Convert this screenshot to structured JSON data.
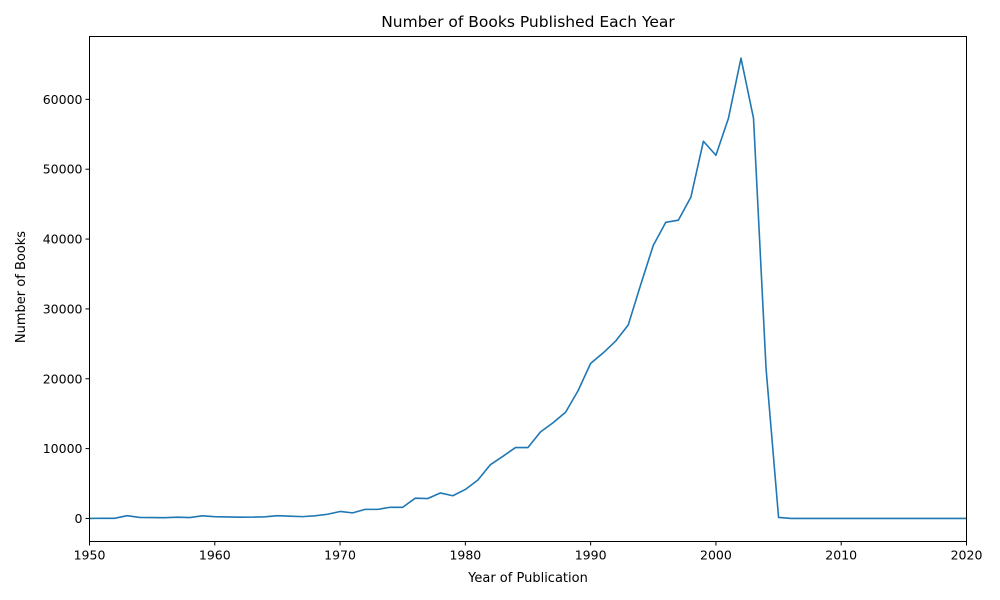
{
  "chart_data": {
    "type": "line",
    "title": "Number of Books Published Each Year",
    "xlabel": "Year of Publication",
    "ylabel": "Number of Books",
    "xlim": [
      1950,
      2020
    ],
    "ylim": [
      -3300,
      69000
    ],
    "xticks": [
      1950,
      1960,
      1970,
      1980,
      1990,
      2000,
      2010,
      2020
    ],
    "yticks": [
      0,
      10000,
      20000,
      30000,
      40000,
      50000,
      60000
    ],
    "grid": false,
    "color": "#1f77b4",
    "series": [
      {
        "x": [
          1950,
          1951,
          1952,
          1953,
          1954,
          1955,
          1956,
          1957,
          1958,
          1959,
          1960,
          1961,
          1962,
          1963,
          1964,
          1965,
          1966,
          1967,
          1968,
          1969,
          1970,
          1971,
          1972,
          1973,
          1974,
          1975,
          1976,
          1977,
          1978,
          1979,
          1980,
          1981,
          1982,
          1983,
          1984,
          1985,
          1986,
          1987,
          1988,
          1989,
          1990,
          1991,
          1992,
          1993,
          1994,
          1995,
          1996,
          1997,
          1998,
          1999,
          2000,
          2001,
          2002,
          2003,
          2004,
          2005,
          2006,
          2007,
          2008,
          2009,
          2010,
          2011,
          2012,
          2013,
          2014,
          2015,
          2016,
          2017,
          2018,
          2019,
          2020
        ],
        "values": [
          0,
          30,
          20,
          400,
          150,
          120,
          110,
          180,
          130,
          380,
          250,
          220,
          180,
          190,
          230,
          400,
          330,
          260,
          380,
          600,
          1000,
          800,
          1300,
          1300,
          1600,
          1600,
          2900,
          2850,
          3650,
          3250,
          4150,
          5500,
          7700,
          8900,
          10150,
          10150,
          12400,
          13700,
          15200,
          18300,
          22200,
          23700,
          25400,
          27700,
          33500,
          39100,
          42400,
          42700,
          46000,
          54000,
          52000,
          57300,
          65900,
          57300,
          21500,
          150,
          0,
          0,
          0,
          0,
          0,
          0,
          0,
          0,
          0,
          0,
          0,
          0,
          0,
          0,
          0
        ]
      }
    ]
  }
}
